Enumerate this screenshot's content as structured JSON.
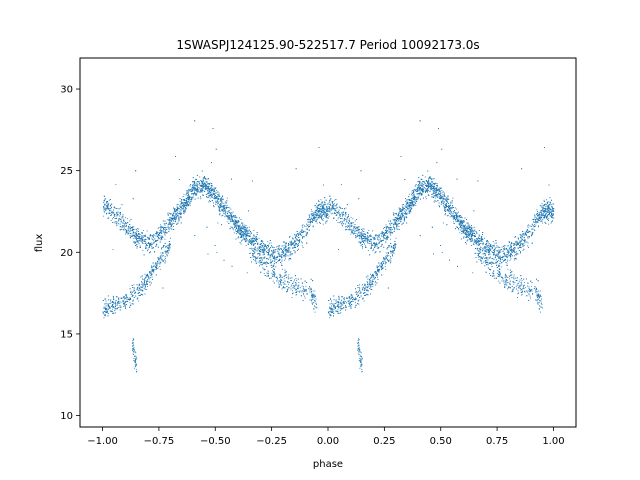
{
  "chart_data": {
    "type": "scatter",
    "title": "1SWASPJ124125.90-522517.7 Period 10092173.0s",
    "xlabel": "phase",
    "ylabel": "flux",
    "xlim": [
      -1.1,
      1.1
    ],
    "ylim": [
      9.3,
      31.9
    ],
    "xticks": [
      -1.0,
      -0.75,
      -0.5,
      -0.25,
      0.0,
      0.25,
      0.5,
      0.75,
      1.0
    ],
    "xtick_labels": [
      "−1.00",
      "−0.75",
      "−0.50",
      "−0.25",
      "0.00",
      "0.25",
      "0.50",
      "0.75",
      "1.00"
    ],
    "yticks": [
      10,
      15,
      20,
      25,
      30
    ],
    "ytick_labels": [
      "10",
      "15",
      "20",
      "25",
      "30"
    ],
    "grid": false,
    "marker_color": "#1f77b4",
    "trends": [
      {
        "phase": [
          0.0,
          0.05,
          0.1,
          0.15,
          0.2,
          0.25,
          0.3,
          0.35,
          0.4,
          0.45,
          0.5,
          0.55,
          0.6,
          0.65,
          0.7,
          0.75,
          0.8,
          0.85,
          0.9,
          0.95,
          1.0
        ],
        "flux": [
          23.0,
          22.4,
          21.7,
          20.9,
          20.5,
          21.0,
          22.0,
          22.7,
          23.9,
          24.2,
          23.4,
          22.5,
          21.5,
          20.9,
          20.4,
          19.9,
          19.9,
          20.6,
          21.5,
          22.5,
          22.6
        ]
      },
      {
        "phase": [
          0.0,
          0.05,
          0.1,
          0.15,
          0.2,
          0.25,
          0.3
        ],
        "flux": [
          16.5,
          16.7,
          17.1,
          17.6,
          18.4,
          19.5,
          20.5
        ]
      }
    ],
    "dip_branch": {
      "phase": [
        0.65,
        0.7,
        0.75,
        0.8,
        0.85,
        0.9,
        0.95
      ],
      "flux": [
        20.3,
        19.4,
        18.8,
        18.2,
        18.0,
        17.7,
        16.8
      ]
    },
    "low_outliers": {
      "phase": [
        0.13,
        0.14,
        0.15
      ],
      "flux": [
        14.5,
        13.7,
        13.0
      ]
    },
    "point_count": 5200
  }
}
